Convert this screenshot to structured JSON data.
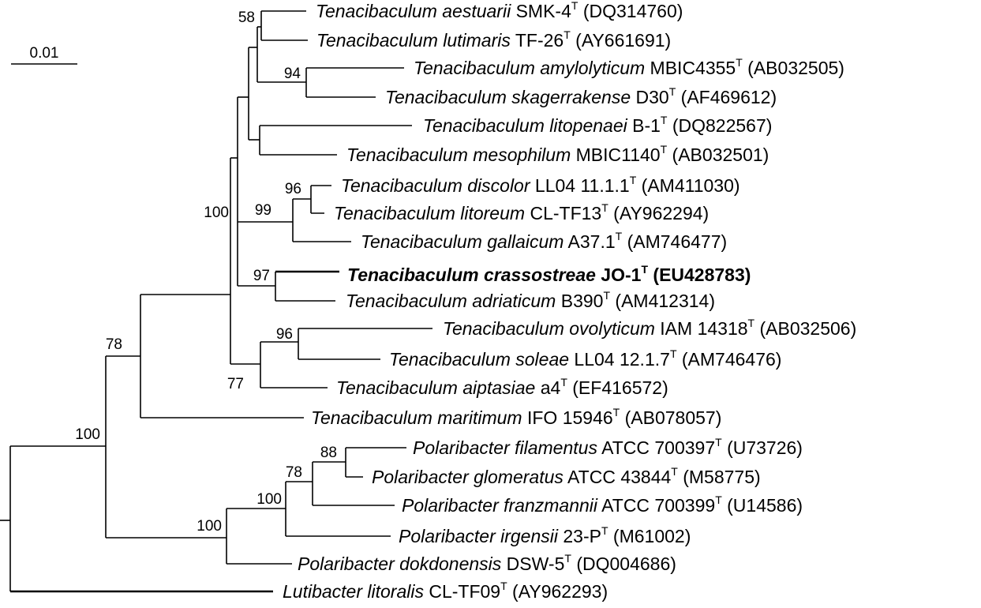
{
  "scale_bar": {
    "label": "0.01"
  },
  "taxa": [
    {
      "genus": "Tenacibaculum",
      "species": "aestuarii",
      "strain": "SMK-4",
      "accession": "(DQ314760)"
    },
    {
      "genus": "Tenacibaculum",
      "species": "lutimaris",
      "strain": "TF-26",
      "accession": "(AY661691)"
    },
    {
      "genus": "Tenacibaculum",
      "species": "amylolyticum",
      "strain": "MBIC4355",
      "accession": "(AB032505)"
    },
    {
      "genus": "Tenacibaculum",
      "species": "skagerrakense",
      "strain": "D30",
      "accession": "(AF469612)"
    },
    {
      "genus": "Tenacibaculum",
      "species": "litopenaei",
      "strain": "B-1",
      "accession": "(DQ822567)"
    },
    {
      "genus": "Tenacibaculum",
      "species": "mesophilum",
      "strain": "MBIC1140",
      "accession": "(AB032501)"
    },
    {
      "genus": "Tenacibaculum",
      "species": "discolor",
      "strain": "LL04 11.1.1",
      "accession": "(AM411030)"
    },
    {
      "genus": "Tenacibaculum",
      "species": "litoreum",
      "strain": "CL-TF13",
      "accession": "(AY962294)"
    },
    {
      "genus": "Tenacibaculum",
      "species": "gallaicum",
      "strain": "A37.1",
      "accession": "(AM746477)"
    },
    {
      "genus": "Tenacibaculum",
      "species": "crassostreae",
      "strain": "JO-1",
      "accession": "(EU428783)",
      "bold": true
    },
    {
      "genus": "Tenacibaculum",
      "species": "adriaticum",
      "strain": "B390",
      "accession": "(AM412314)"
    },
    {
      "genus": "Tenacibaculum",
      "species": "ovolyticum",
      "strain": "IAM 14318",
      "accession": "(AB032506)"
    },
    {
      "genus": "Tenacibaculum",
      "species": "soleae",
      "strain": "LL04 12.1.7",
      "accession": "(AM746476)"
    },
    {
      "genus": "Tenacibaculum",
      "species": "aiptasiae",
      "strain": "a4",
      "accession": "(EF416572)"
    },
    {
      "genus": "Tenacibaculum",
      "species": "maritimum",
      "strain": "IFO 15946",
      "accession": "(AB078057)"
    },
    {
      "genus": "Polaribacter",
      "species": "filamentus",
      "strain": "ATCC 700397",
      "accession": "(U73726)"
    },
    {
      "genus": "Polaribacter",
      "species": "glomeratus",
      "strain": "ATCC 43844",
      "accession": "(M58775)"
    },
    {
      "genus": "Polaribacter",
      "species": "franzmannii",
      "strain": "ATCC 700399",
      "accession": "(U14586)"
    },
    {
      "genus": "Polaribacter",
      "species": "irgensii",
      "strain": "23-P",
      "accession": "(M61002)"
    },
    {
      "genus": "Polaribacter",
      "species": "dokdonensis",
      "strain": "DSW-5",
      "accession": "(DQ004686)"
    },
    {
      "genus": "Lutibacter",
      "species": "litoralis",
      "strain": "CL-TF09",
      "accession": "(AY962293)"
    }
  ],
  "type_strain_mark": "T",
  "bootstrap_values": [
    "58",
    "94",
    "96",
    "99",
    "100",
    "97",
    "96",
    "77",
    "78",
    "88",
    "78",
    "100",
    "100",
    "100"
  ]
}
